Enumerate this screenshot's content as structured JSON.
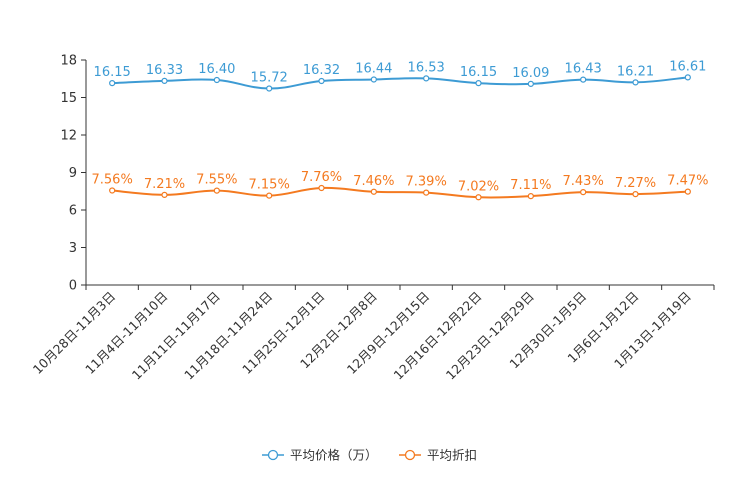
{
  "chart_data": {
    "type": "line",
    "categories": [
      "10月28日-11月3日",
      "11月4日-11月10日",
      "11月11日-11月17日",
      "11月18日-11月24日",
      "11月25日-12月1日",
      "12月2日-12月8日",
      "12月9日-12月15日",
      "12月16日-12月22日",
      "12月23日-12月29日",
      "12月30日-1月5日",
      "1月6日-1月12日",
      "1月13日-1月19日"
    ],
    "series": [
      {
        "name": "平均价格（万）",
        "color": "#3d9bd4",
        "values": [
          16.15,
          16.33,
          16.4,
          15.72,
          16.32,
          16.44,
          16.53,
          16.15,
          16.09,
          16.43,
          16.21,
          16.61
        ],
        "labels": [
          "16.15",
          "16.33",
          "16.40",
          "15.72",
          "16.32",
          "16.44",
          "16.53",
          "16.15",
          "16.09",
          "16.43",
          "16.21",
          "16.61"
        ]
      },
      {
        "name": "平均折扣",
        "color": "#f47a20",
        "values": [
          7.56,
          7.21,
          7.55,
          7.15,
          7.76,
          7.46,
          7.39,
          7.02,
          7.11,
          7.43,
          7.27,
          7.47
        ],
        "labels": [
          "7.56%",
          "7.21%",
          "7.55%",
          "7.15%",
          "7.76%",
          "7.46%",
          "7.39%",
          "7.02%",
          "7.11%",
          "7.43%",
          "7.27%",
          "7.47%"
        ]
      }
    ],
    "y_ticks": [
      "0",
      "3",
      "6",
      "9",
      "12",
      "15",
      "18"
    ],
    "ylim": [
      0,
      18
    ],
    "title": "",
    "xlabel": "",
    "ylabel": "",
    "grid": false,
    "legend": "bottom-center"
  }
}
